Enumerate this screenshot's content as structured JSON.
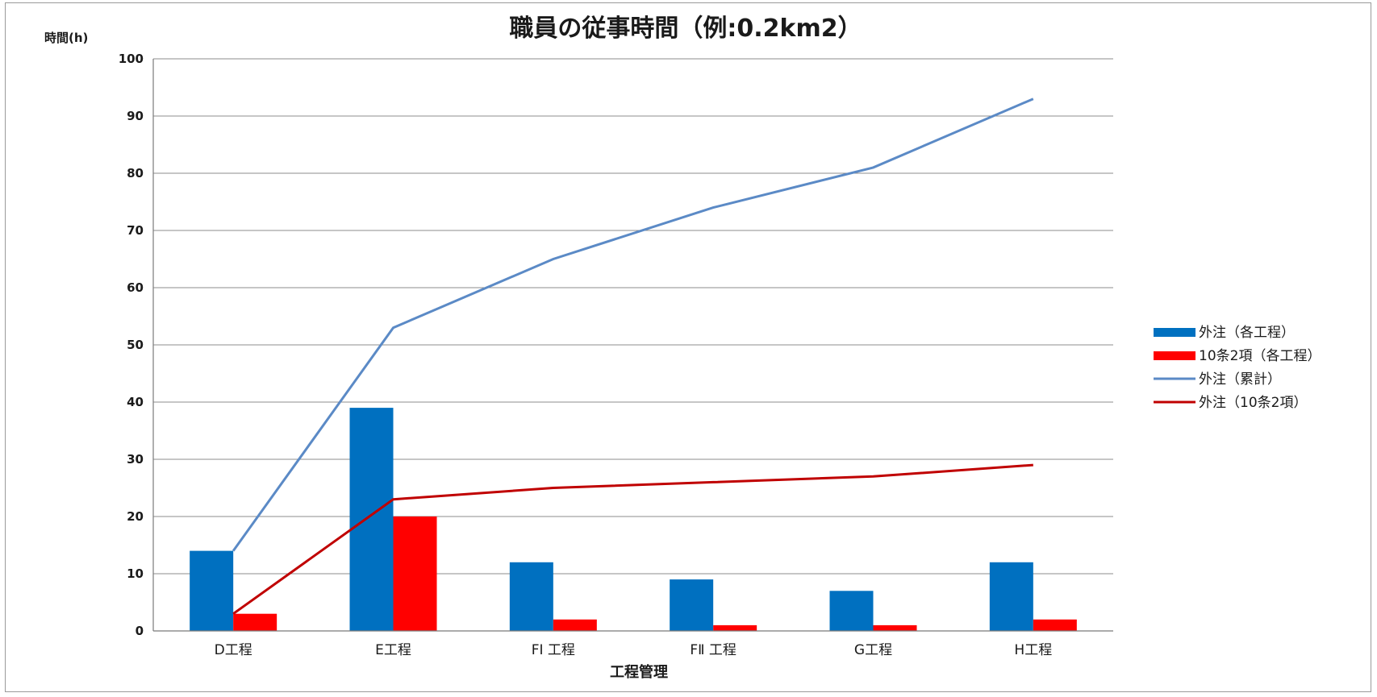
{
  "chart_data": {
    "type": "bar",
    "title": "職員の従事時間（例:0.2km2）",
    "ylabel": "時間(h)",
    "xlabel": "工程管理",
    "ylim": [
      0,
      100
    ],
    "yticks": [
      0,
      10,
      20,
      30,
      40,
      50,
      60,
      70,
      80,
      90,
      100
    ],
    "grid": true,
    "legend_position": "right",
    "categories": [
      "D工程",
      "E工程",
      "FⅠ 工程",
      "FⅡ 工程",
      "G工程",
      "H工程"
    ],
    "series": [
      {
        "name": "外注（各工程）",
        "kind": "bar",
        "color": "#0070c0",
        "values": [
          14,
          39,
          12,
          9,
          7,
          12
        ]
      },
      {
        "name": "10条2項（各工程）",
        "kind": "bar",
        "color": "#ff0000",
        "values": [
          3,
          20,
          2,
          1,
          1,
          2
        ]
      },
      {
        "name": "外注（累計）",
        "kind": "line",
        "color": "#5b8ac6",
        "values": [
          14,
          53,
          65,
          74,
          81,
          93
        ]
      },
      {
        "name": "外注（10条2項）",
        "kind": "line",
        "color": "#c00000",
        "values": [
          3,
          23,
          25,
          26,
          27,
          29
        ]
      }
    ]
  }
}
